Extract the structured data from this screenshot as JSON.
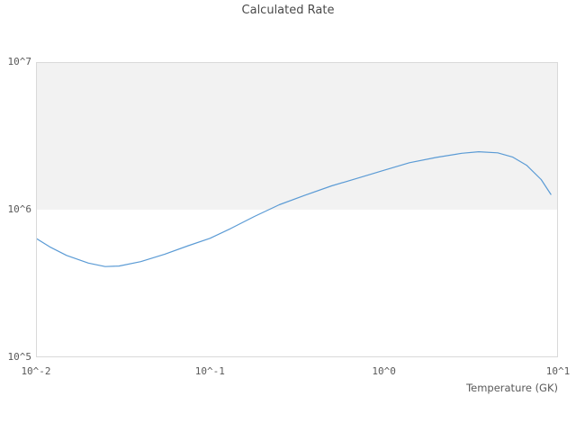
{
  "title": "Calculated Rate",
  "x_axis": {
    "label": "Temperature (GK)"
  },
  "colors": {
    "background": "#ffffff",
    "plot_border": "#d9d9d9",
    "band_fill": "#f2f2f2",
    "line": "#5b9bd5",
    "title_text": "#4a4a4a",
    "tick_text": "#595959"
  },
  "chart_data": {
    "type": "line",
    "title": "Calculated Rate",
    "xlabel": "Temperature (GK)",
    "ylabel": "",
    "x_scale": "log",
    "y_scale": "log",
    "xlim": [
      0.01,
      10
    ],
    "ylim": [
      100000,
      10000000
    ],
    "grid": false,
    "legend_position": "none",
    "x_ticks": [
      {
        "value": 0.01,
        "label": "10^-2"
      },
      {
        "value": 0.1,
        "label": "10^-1"
      },
      {
        "value": 1,
        "label": "10^0"
      },
      {
        "value": 10,
        "label": "10^1"
      }
    ],
    "y_ticks": [
      {
        "value": 100000,
        "label": "10^5"
      },
      {
        "value": 1000000,
        "label": "10^6"
      },
      {
        "value": 10000000,
        "label": "10^7"
      }
    ],
    "shaded_band": {
      "from": 1000000,
      "to": 10000000,
      "color": "#f2f2f2"
    },
    "line_color": "#5b9bd5",
    "series": [
      {
        "name": "Calculated Rate",
        "x": [
          0.01,
          0.012,
          0.015,
          0.02,
          0.025,
          0.03,
          0.04,
          0.055,
          0.075,
          0.1,
          0.13,
          0.18,
          0.25,
          0.35,
          0.5,
          0.7,
          1.0,
          1.4,
          2.0,
          2.8,
          3.5,
          4.5,
          5.5,
          6.6,
          8.0,
          9.1
        ],
        "y": [
          640000,
          560000,
          490000,
          435000,
          412000,
          415000,
          445000,
          500000,
          570000,
          640000,
          740000,
          900000,
          1080000,
          1250000,
          1450000,
          1630000,
          1850000,
          2080000,
          2260000,
          2410000,
          2470000,
          2430000,
          2270000,
          2000000,
          1600000,
          1270000
        ]
      }
    ]
  }
}
